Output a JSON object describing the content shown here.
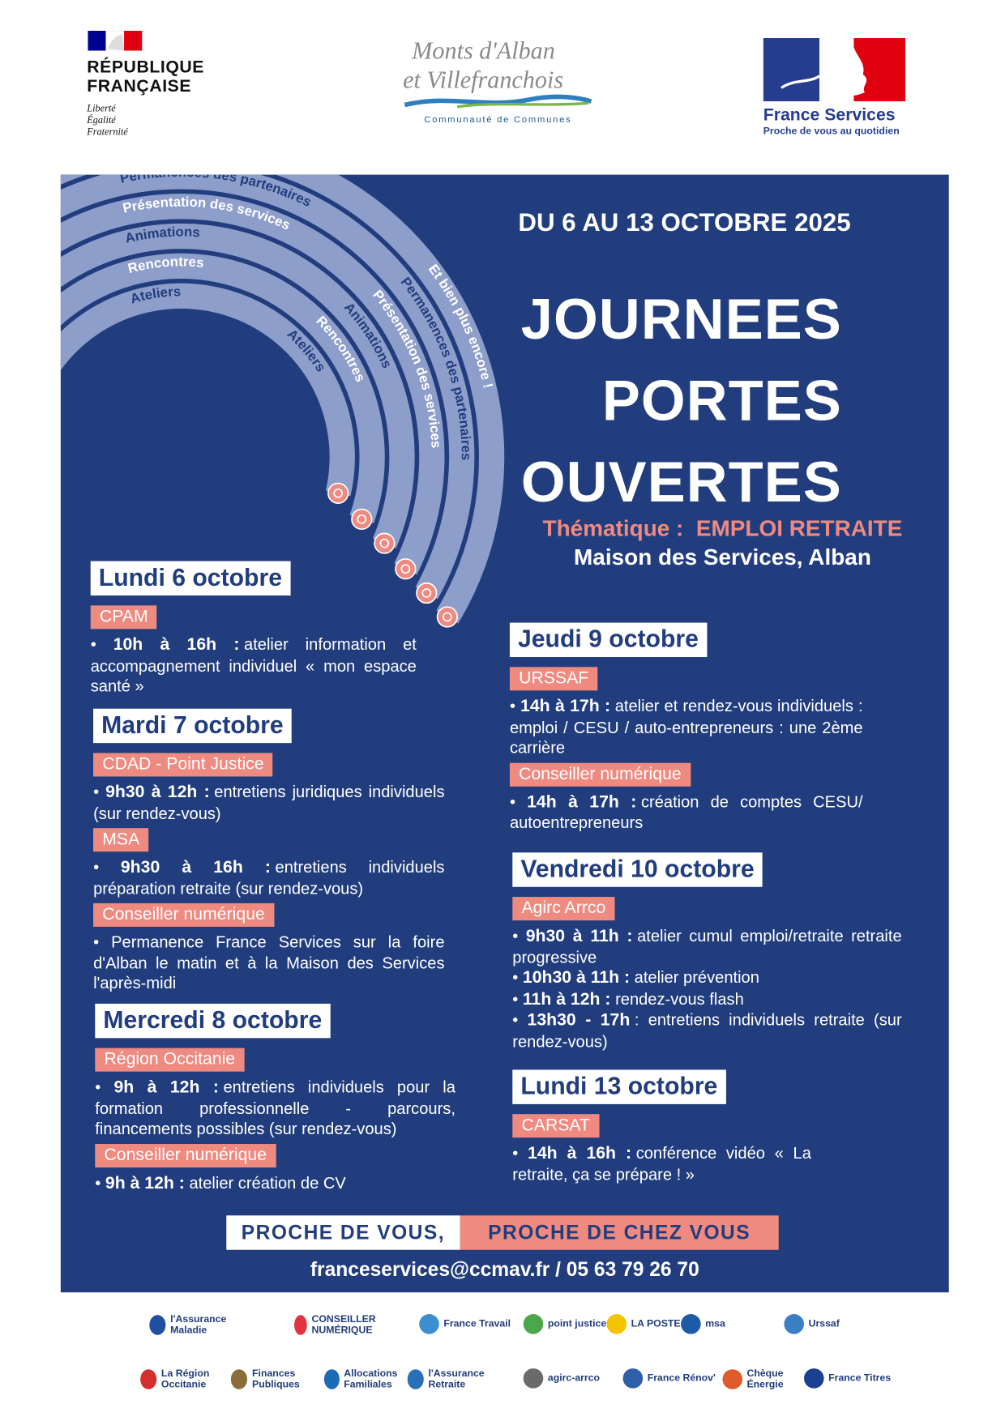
{
  "header": {
    "republique": {
      "lines": [
        "RÉPUBLIQUE",
        "FRANÇAISE"
      ],
      "motto": [
        "Liberté",
        "Égalité",
        "Fraternité"
      ]
    },
    "community": {
      "lines": [
        "Monts d'Alban",
        "et Villefranchois"
      ],
      "subtitle": "Communauté de Communes"
    },
    "france_services": {
      "name": "France Services",
      "tagline": "Proche de vous au quotidien"
    }
  },
  "arc_labels": [
    "Ateliers",
    "Rencontres",
    "Animations",
    "Présentation des services",
    "Permanences des partenaires",
    "Et bien plus encore !"
  ],
  "dates": "DU 6 AU 13 OCTOBRE 2025",
  "title": [
    "JOURNEES",
    "PORTES",
    "OUVERTES"
  ],
  "theme_label": "Thématique :",
  "theme": "EMPLOI RETRAITE",
  "location": "Maison des Services, Alban",
  "days": [
    {
      "day": "Lundi 6 octobre",
      "sessions": [
        {
          "org": "CPAM",
          "items": [
            {
              "time": "10h à 16h :",
              "text": "atelier information et accompagnement individuel « mon espace santé »"
            }
          ]
        }
      ]
    },
    {
      "day": "Mardi 7 octobre",
      "sessions": [
        {
          "org": "CDAD - Point Justice",
          "items": [
            {
              "time": "9h30 à 12h :",
              "text": "entretiens juridiques individuels (sur rendez-vous)"
            }
          ]
        },
        {
          "org": "MSA",
          "items": [
            {
              "time": "9h30 à 16h :",
              "text": "entretiens individuels préparation retraite (sur rendez-vous)"
            }
          ]
        },
        {
          "org": "Conseiller numérique",
          "items": [
            {
              "text": "Permanence France Services sur la foire d'Alban le matin et à la Maison des Services l'après-midi"
            }
          ]
        }
      ]
    },
    {
      "day": "Mercredi 8 octobre",
      "sessions": [
        {
          "org": "Région Occitanie",
          "items": [
            {
              "time": "9h à 12h :",
              "text": "entretiens individuels pour la formation professionnelle - parcours, financements possibles (sur rendez-vous)"
            }
          ]
        },
        {
          "org": "Conseiller numérique",
          "items": [
            {
              "time": "9h à 12h :",
              "text": "atelier création de CV"
            }
          ]
        }
      ]
    },
    {
      "day": "Jeudi 9 octobre",
      "sessions": [
        {
          "org": "URSSAF",
          "items": [
            {
              "time": "14h à 17h :",
              "text": "atelier et rendez-vous individuels : emploi / CESU / auto-entrepreneurs : une 2ème carrière"
            }
          ]
        },
        {
          "org": "Conseiller numérique",
          "items": [
            {
              "time": "14h à 17h :",
              "text": "création de comptes CESU/ autoentrepreneurs"
            }
          ]
        }
      ]
    },
    {
      "day": "Vendredi 10 octobre",
      "sessions": [
        {
          "org": "Agirc Arrco",
          "items": [
            {
              "time": "9h30 à 11h :",
              "text": "atelier cumul emploi/retraite retraite progressive"
            },
            {
              "time": "10h30 à 11h :",
              "text": "atelier prévention"
            },
            {
              "time": "11h à 12h :",
              "text": "rendez-vous flash"
            },
            {
              "time": "13h30 - 17h",
              "text": ": entretiens individuels retraite (sur rendez-vous)"
            }
          ]
        }
      ]
    },
    {
      "day": "Lundi 13 octobre",
      "sessions": [
        {
          "org": "CARSAT",
          "items": [
            {
              "time": "14h à 16h :",
              "text": "conférence vidéo « La retraite, ça se prépare ! »"
            }
          ]
        }
      ]
    }
  ],
  "slogan": [
    "PROCHE DE VOUS,",
    "PROCHE DE CHEZ VOUS"
  ],
  "contact": "franceservices@ccmav.fr / 05 63 79 26 70",
  "partners": [
    [
      "l'Assurance Maladie",
      "CONSEILLER NUMÉRIQUE",
      "France Travail",
      "point justice",
      "LA POSTE",
      "msa",
      "Urssaf"
    ],
    [
      "La Région Occitanie",
      "Finances Publiques",
      "Allocations Familiales",
      "l'Assurance Retraite",
      "agirc-arrco",
      "France Rénov'",
      "Chèque Énergie",
      "France Titres"
    ]
  ]
}
